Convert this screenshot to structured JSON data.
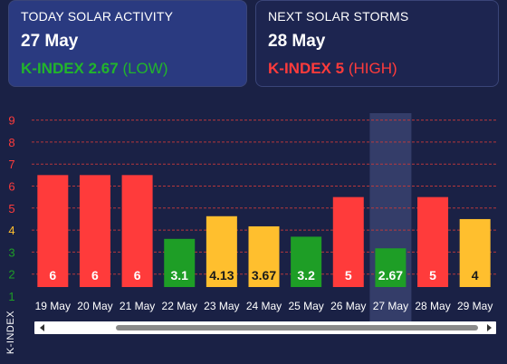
{
  "today": {
    "label": "TODAY SOLAR ACTIVITY",
    "date": "27 May",
    "k_label": "K-INDEX 2.67",
    "level": "(LOW)",
    "color": "#22b52b"
  },
  "next": {
    "label": "NEXT SOLAR STORMS",
    "date": "28 May",
    "k_label": "K-INDEX 5",
    "level": "(HIGH)",
    "color": "#ff3b3b"
  },
  "colors": {
    "high": "#ff3b3b",
    "moderate": "#ffbf2e",
    "low": "#1e9e26",
    "grid": "#c73a3a",
    "highlight": "#3a4270"
  },
  "chart_data": {
    "type": "bar",
    "categories": [
      "19 May",
      "20 May",
      "21 May",
      "22 May",
      "23 May",
      "24 May",
      "25 May",
      "26 May",
      "27 May",
      "28 May",
      "29 May"
    ],
    "values": [
      6,
      6,
      6,
      3.1,
      4.13,
      3.67,
      3.2,
      5,
      2.67,
      5,
      4
    ],
    "value_labels": [
      "6",
      "6",
      "6",
      "3.1",
      "4.13",
      "3.67",
      "3.2",
      "5",
      "2.67",
      "5",
      "4"
    ],
    "bar_colors": [
      "high",
      "high",
      "high",
      "low",
      "moderate",
      "moderate",
      "low",
      "high",
      "low",
      "high",
      "moderate"
    ],
    "highlight_category": "27 May",
    "ylabel": "K-INDEX",
    "y_ticks": [
      1,
      2,
      3,
      4,
      5,
      6,
      7,
      8,
      9
    ],
    "y_tick_colors": [
      "low",
      "low",
      "low",
      "moderate",
      "high",
      "high",
      "high",
      "high",
      "high"
    ],
    "ylim": [
      1,
      9
    ]
  }
}
